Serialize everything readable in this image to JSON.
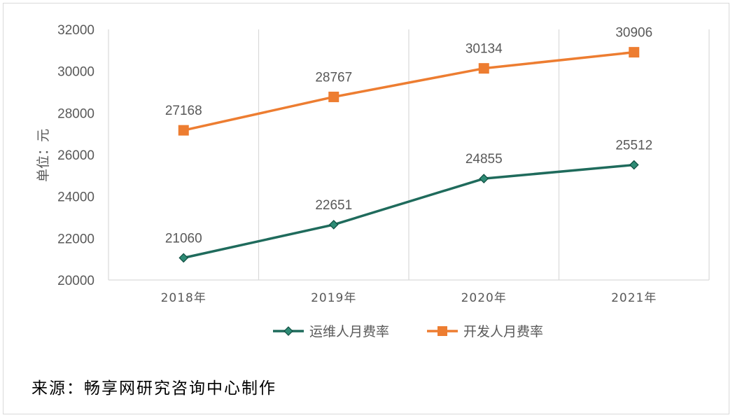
{
  "chart_data": {
    "type": "line",
    "categories": [
      "2018年",
      "2019年",
      "2020年",
      "2021年"
    ],
    "series": [
      {
        "name": "运维人月费率",
        "values": [
          21060,
          22651,
          24855,
          25512
        ],
        "color": "#1f6b5c",
        "marker": "diamond"
      },
      {
        "name": "开发人月费率",
        "values": [
          27168,
          28767,
          30134,
          30906
        ],
        "color": "#ed7d31",
        "marker": "square"
      }
    ],
    "title": "",
    "xlabel": "",
    "ylabel": "单位：元",
    "ylim": [
      20000,
      32000
    ],
    "yticks": [
      20000,
      22000,
      24000,
      26000,
      28000,
      30000,
      32000
    ],
    "grid": "vertical",
    "legend_position": "bottom"
  },
  "source_note": "来源：畅享网研究咨询中心制作"
}
